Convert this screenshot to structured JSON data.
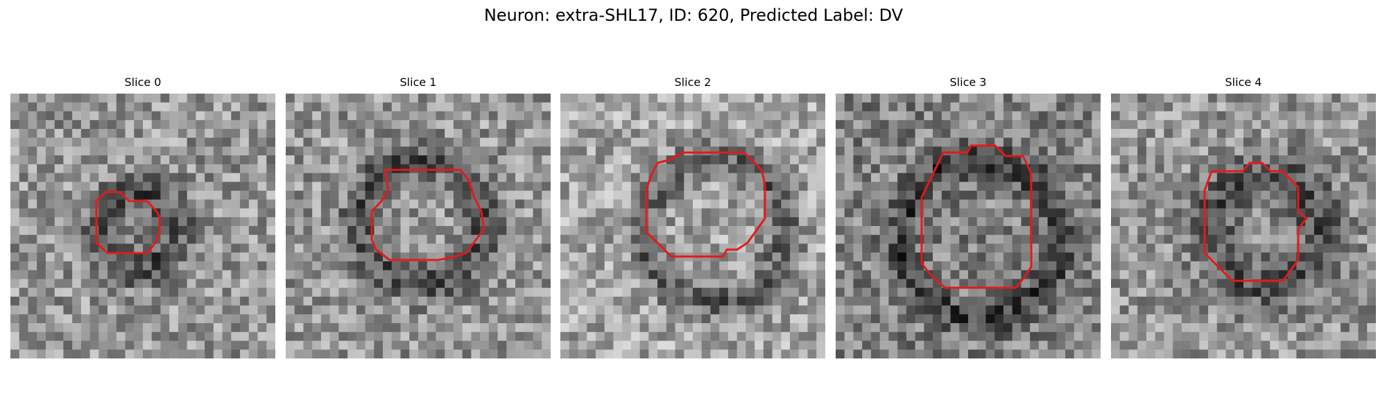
{
  "figure": {
    "title": "Neuron: extra-SHL17, ID: 620, Predicted Label: DV"
  },
  "panels": [
    {
      "title": "Slice 0"
    },
    {
      "title": "Slice 1"
    },
    {
      "title": "Slice 2"
    },
    {
      "title": "Slice 3"
    },
    {
      "title": "Slice 4"
    }
  ],
  "colors": {
    "contour": "#e31a1c",
    "background": "#ffffff",
    "colormap": "gray"
  }
}
